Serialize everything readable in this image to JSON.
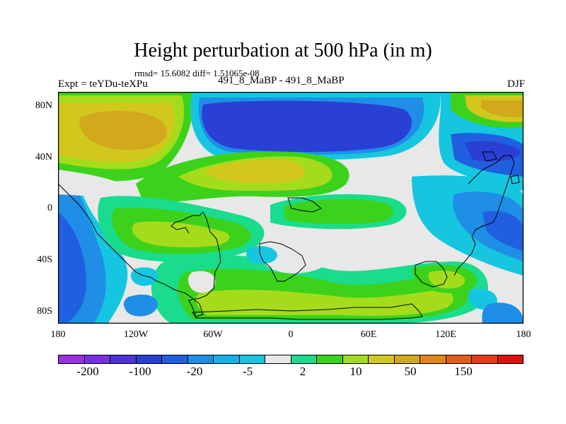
{
  "title": "Height perturbation at 500 hPa (in m)",
  "stats_line": "rmsd= 15.6082 diff= 1.51065e-08",
  "left_label": "Expt = teYDu-teXPu",
  "center_label": "491_8_MaBP - 491_8_MaBP",
  "right_label": "DJF",
  "lat_ticks": [
    "80N",
    "40N",
    "0",
    "40S",
    "80S"
  ],
  "lon_ticks": [
    "180",
    "120W",
    "60W",
    "0",
    "60E",
    "120E",
    "180"
  ],
  "colorbar": {
    "colors": [
      "#9b30e0",
      "#7a2fe6",
      "#4c33de",
      "#2a3fd4",
      "#2060e0",
      "#1e8ee6",
      "#14b0e8",
      "#16c6e0",
      "#e8e8e8",
      "#19dc8c",
      "#3cd21c",
      "#a4dc1c",
      "#d2c81c",
      "#d2a81c",
      "#e2841a",
      "#e45c1a",
      "#e83a1a",
      "#e01010"
    ],
    "labels": [
      "-200",
      "-100",
      "-20",
      "-5",
      "2",
      "10",
      "50",
      "150"
    ]
  },
  "map_colors": {
    "neutral": "#e8e8e8",
    "cyan": "#16c6e0",
    "light_blue": "#14b0e8",
    "blue": "#1e8ee6",
    "mid_blue": "#2060e0",
    "dark_blue": "#2a3fd4",
    "teal": "#19dc8c",
    "green": "#3cd21c",
    "yellow_green": "#a4dc1c",
    "yellow": "#d2c81c",
    "orange": "#d2a81c",
    "dark_orange": "#e2841a"
  }
}
